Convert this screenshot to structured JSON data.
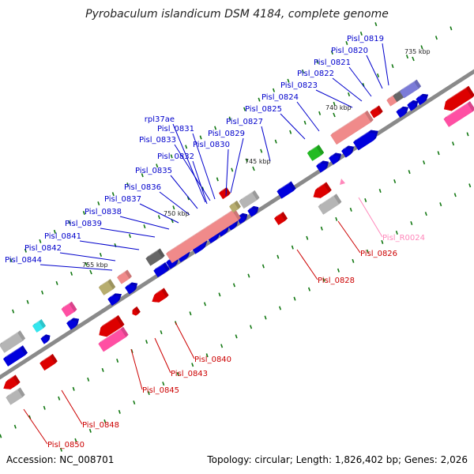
{
  "title": "Pyrobaculum islandicum DSM 4184, complete genome",
  "accession": "Accession: NC_008701",
  "summary": "Topology: circular; Length: 1,826,402 bp; Genes: 2,026",
  "colors": {
    "backbone": "#8a8a8a",
    "forward_gene": "#0000dd",
    "reverse_gene": "#dd0000",
    "pseudogene": "#f08a8a",
    "other_feature_gray": "#b5b5b5",
    "rrna_pink": "#ff4fa3",
    "trna_cyan": "#33e6ee",
    "olive_feature": "#b7ad6e",
    "green_feature": "#22bb22",
    "kbp_tick": "#117711",
    "forward_label": "#0000cc",
    "reverse_label": "#cc0000",
    "rna_label": "#ff88bb"
  },
  "scale_labels": [
    "735 kbp",
    "740 kbp",
    "745 kbp",
    "750 kbp",
    "755 kbp"
  ],
  "forward_labels": [
    "Pisl_0819",
    "Pisl_0820",
    "Pisl_0821",
    "Pisl_0822",
    "Pisl_0823",
    "Pisl_0824",
    "Pisl_0825",
    "Pisl_0827",
    "Pisl_0829",
    "Pisl_0830",
    "Pisl_0831",
    "rpl37ae",
    "Pisl_0833",
    "Pisl_0832",
    "Pisl_0835",
    "Pisl_0836",
    "Pisl_0837",
    "Pisl_0838",
    "Pisl_0839",
    "Pisl_0841",
    "Pisl_0842",
    "Pisl_0844"
  ],
  "reverse_labels": [
    "Pisl_R0024",
    "Pisl_0826",
    "Pisl_0828",
    "Pisl_0840",
    "Pisl_0843",
    "Pisl_0845",
    "Pisl_0848",
    "Pisl_0850"
  ]
}
